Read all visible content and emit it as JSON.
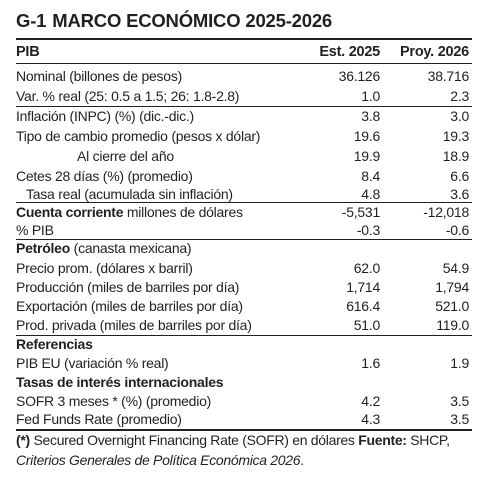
{
  "title": {
    "code": "G-1",
    "text": "MARCO ECONÓMICO 2025-2026"
  },
  "header": {
    "label": "PIB",
    "col1": "Est. 2025",
    "col2": "Proy. 2026"
  },
  "rows": [
    {
      "label": "Nominal (billones de pesos)",
      "v1": "36.126",
      "v2": "38.716"
    },
    {
      "label": "Var. % real (25: 0.5 a 1.5; 26: 1.8-2.8)",
      "v1": "1.0",
      "v2": "2.3"
    },
    {
      "label": "Inflación (INPC) (%) (dic.-dic.)",
      "v1": "3.8",
      "v2": "3.0"
    },
    {
      "label": "Tipo de cambio promedio (pesos x dólar)",
      "v1": "19.6",
      "v2": "19.3"
    },
    {
      "label": "Al cierre del año",
      "v1": "19.9",
      "v2": "18.9"
    },
    {
      "label": "Cetes 28 días (%) (promedio)",
      "v1": "8.4",
      "v2": "6.6"
    },
    {
      "label": "Tasa real (acumulada sin inflación)",
      "v1": "4.8",
      "v2": "3.6"
    },
    {
      "label_bold": "Cuenta corriente",
      "label": " millones de dólares",
      "v1": "-5,531",
      "v2": "-12,018"
    },
    {
      "label": "% PIB",
      "v1": "-0.3",
      "v2": "-0.6"
    },
    {
      "label_bold": "Petróleo",
      "label": " (canasta mexicana)"
    },
    {
      "label": "Precio prom. (dólares x barril)",
      "v1": "62.0",
      "v2": "54.9"
    },
    {
      "label": "Producción (miles de barriles por día)",
      "v1": "1,714",
      "v2": "1,794"
    },
    {
      "label": "Exportación (miles de barriles por día)",
      "v1": "616.4",
      "v2": "521.0"
    },
    {
      "label": "Prod. privada (miles de barriles por día)",
      "v1": "51.0",
      "v2": "119.0"
    },
    {
      "label_bold": "Referencias"
    },
    {
      "label": "PIB EU (variación % real)",
      "v1": "1.6",
      "v2": "1.9"
    },
    {
      "label_bold": "Tasas de interés internacionales"
    },
    {
      "label": "SOFR 3 meses * (%) (promedio)",
      "v1": "4.2",
      "v2": "3.5"
    },
    {
      "label": "Fed Funds Rate (promedio)",
      "v1": "4.3",
      "v2": "3.5"
    }
  ],
  "footnote": {
    "mark": "(*)",
    "text": " Secured Overnight Financing Rate (SOFR) en dólares ",
    "source_label": "Fuente:",
    "source": " SHCP, ",
    "source_italic": "Criterios Generales de Política Económica 2026",
    "end": "."
  }
}
